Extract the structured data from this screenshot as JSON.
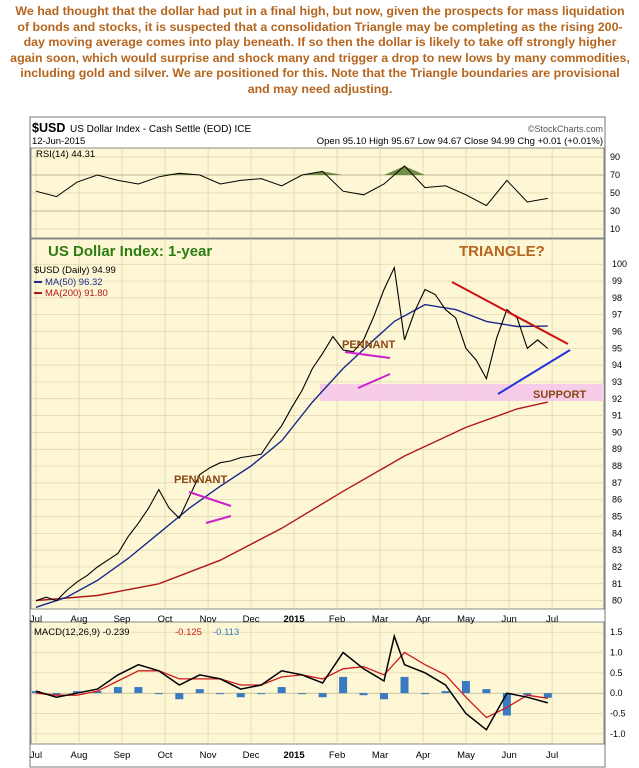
{
  "caption": "We had thought that the dollar had put in a final high, but now, given the prospects for mass liquidation of bonds and stocks, it is suspected that a consolidation Triangle may be completing as the rising 200-day moving average comes into play beneath. If so then the dollar is likely to take off strongly higher again soon, which would surprise and shock many and trigger a drop to new lows by many commodities, including gold and silver. We are positioned for this. Note that the Triangle boundaries are provisional and may need adjusting.",
  "header": {
    "symbol": "$USD",
    "name": "US Dollar Index - Cash Settle (EOD) ICE",
    "source": "©StockCharts.com",
    "date": "12-Jun-2015",
    "ohlc": "Open 95.10   High 95.67   Low 94.67   Close 94.99   Chg +0.01 (+0.01%)"
  },
  "annotations": {
    "title": "US Dollar Index: 1-year",
    "triangle": "TRIANGLE?",
    "pennant1": "PENNANT",
    "pennant2": "PENNANT",
    "support": "SUPPORT"
  },
  "colors": {
    "price": "#000000",
    "ma50": "#1a2a8a",
    "ma200": "#b01818",
    "triangle_top": "#cc1111",
    "triangle_bottom": "#2233dd",
    "pennant": "#cc22cc",
    "support_band": "#f6c6ea",
    "rsi_fill": "#5a7a2a",
    "macd_line": "#000000",
    "macd_signal": "#d01a1a",
    "macd_hist": "#3a7ac0",
    "caption": "#b5651d",
    "title_green": "#2e7d12"
  },
  "chart_data": [
    {
      "type": "line",
      "title": "RSI(14) 44.31",
      "series": [
        {
          "name": "RSI(14) 44.31",
          "x": [
            0,
            10,
            20,
            30,
            40,
            50,
            60,
            70,
            80,
            90,
            100,
            110,
            120,
            130,
            140,
            150,
            160,
            170,
            180,
            190,
            200,
            210,
            220,
            230,
            240,
            250
          ],
          "values": [
            52,
            46,
            62,
            70,
            64,
            60,
            68,
            72,
            70,
            60,
            64,
            66,
            58,
            70,
            74,
            52,
            48,
            60,
            80,
            56,
            58,
            48,
            36,
            64,
            40,
            44
          ]
        }
      ],
      "yticks": [
        10,
        30,
        50,
        70,
        90
      ],
      "ylim": [
        0,
        100
      ]
    },
    {
      "type": "line",
      "title": "US Dollar Index: 1-year",
      "categories": [
        "Jul",
        "Aug",
        "Sep",
        "Oct",
        "Nov",
        "Dec",
        "2015",
        "Feb",
        "Mar",
        "Apr",
        "May",
        "Jun",
        "Jul"
      ],
      "yticks": [
        80,
        81,
        82,
        83,
        84,
        85,
        86,
        87,
        88,
        89,
        90,
        91,
        92,
        93,
        94,
        95,
        96,
        97,
        98,
        99,
        100
      ],
      "ylim": [
        79.5,
        101.5
      ],
      "series": [
        {
          "name": "$USD (Daily) 94.99",
          "x": [
            0,
            5,
            10,
            15,
            20,
            25,
            30,
            35,
            40,
            45,
            50,
            55,
            60,
            65,
            70,
            75,
            80,
            85,
            90,
            95,
            100,
            105,
            110,
            115,
            120,
            125,
            130,
            135,
            140,
            145,
            150,
            155,
            160,
            165,
            170,
            175,
            180,
            185,
            190,
            195,
            200,
            205,
            210,
            215,
            220,
            225,
            230,
            235,
            240,
            245,
            250
          ],
          "values": [
            80.0,
            80.2,
            80.0,
            80.6,
            81.1,
            81.5,
            82.0,
            82.4,
            82.8,
            83.8,
            84.6,
            85.5,
            86.6,
            85.5,
            84.9,
            86.2,
            87.5,
            87.9,
            88.2,
            88.3,
            88.5,
            88.6,
            88.7,
            89.6,
            90.4,
            91.5,
            92.5,
            93.8,
            94.7,
            95.7,
            94.9,
            94.8,
            95.5,
            96.9,
            98.5,
            99.8,
            95.5,
            97.2,
            98.5,
            98.2,
            97.3,
            96.8,
            95.0,
            94.3,
            93.2,
            95.6,
            97.3,
            96.8,
            95.0,
            95.5,
            94.99
          ]
        },
        {
          "name": "MA(50) 96.32",
          "x": [
            0,
            15,
            30,
            45,
            60,
            75,
            90,
            105,
            120,
            135,
            150,
            165,
            175,
            190,
            205,
            220,
            235,
            250
          ],
          "values": [
            79.6,
            80.2,
            81.2,
            82.5,
            84.0,
            85.5,
            86.8,
            88.0,
            89.5,
            91.8,
            93.8,
            95.5,
            96.6,
            97.6,
            97.3,
            96.6,
            96.3,
            96.32
          ]
        },
        {
          "name": "MA(200) 91.80",
          "x": [
            0,
            30,
            60,
            90,
            120,
            150,
            180,
            210,
            235,
            250
          ],
          "values": [
            80.0,
            80.3,
            81.0,
            82.4,
            84.3,
            86.5,
            88.6,
            90.3,
            91.4,
            91.8
          ]
        }
      ]
    },
    {
      "type": "line",
      "title": "MACD(12,26,9) -0.239, -0.125, -0.113",
      "yticks": [
        -1.0,
        -0.5,
        0.0,
        0.5,
        1.0,
        1.5
      ],
      "ylim": [
        -1.25,
        1.75
      ],
      "series": [
        {
          "name": "MACD(12,26,9) -0.239",
          "x": [
            0,
            10,
            20,
            30,
            40,
            50,
            60,
            70,
            80,
            90,
            100,
            110,
            120,
            130,
            140,
            150,
            160,
            170,
            175,
            180,
            190,
            200,
            210,
            220,
            230,
            240,
            250
          ],
          "values": [
            0.05,
            -0.1,
            0.0,
            0.1,
            0.45,
            0.7,
            0.55,
            0.2,
            0.45,
            0.35,
            0.1,
            0.2,
            0.55,
            0.45,
            0.25,
            1.0,
            0.6,
            0.3,
            1.4,
            0.7,
            0.5,
            0.2,
            -0.5,
            -0.9,
            0.0,
            -0.1,
            -0.239
          ]
        },
        {
          "name": "-0.125",
          "x": [
            0,
            10,
            20,
            30,
            40,
            50,
            60,
            70,
            80,
            90,
            100,
            110,
            120,
            130,
            140,
            150,
            160,
            170,
            180,
            190,
            200,
            210,
            220,
            230,
            240,
            250
          ],
          "values": [
            0.0,
            -0.05,
            -0.05,
            0.05,
            0.3,
            0.55,
            0.55,
            0.35,
            0.35,
            0.35,
            0.2,
            0.2,
            0.4,
            0.45,
            0.35,
            0.6,
            0.65,
            0.45,
            1.0,
            0.7,
            0.45,
            -0.1,
            -0.6,
            -0.35,
            -0.05,
            -0.125
          ]
        },
        {
          "name": "-0.113",
          "x": [
            0,
            10,
            20,
            30,
            40,
            50,
            60,
            70,
            80,
            90,
            100,
            110,
            120,
            130,
            140,
            150,
            160,
            170,
            180,
            190,
            200,
            210,
            220,
            230,
            240,
            250
          ],
          "values": [
            0.05,
            -0.05,
            0.05,
            0.05,
            0.15,
            0.15,
            0.0,
            -0.15,
            0.1,
            0.0,
            -0.1,
            0.0,
            0.15,
            0.0,
            -0.1,
            0.4,
            -0.05,
            -0.15,
            0.4,
            0.0,
            0.05,
            0.3,
            0.1,
            -0.55,
            -0.05,
            -0.113
          ]
        }
      ]
    }
  ]
}
